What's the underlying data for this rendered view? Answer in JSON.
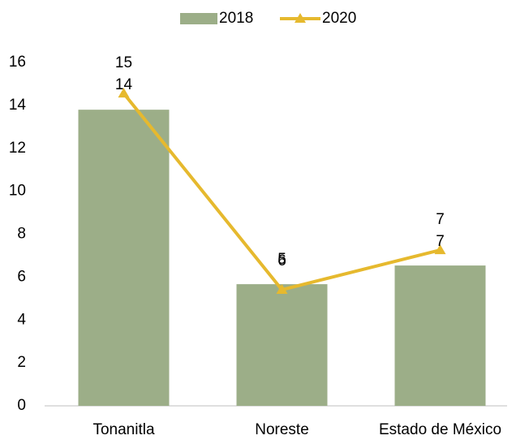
{
  "chart_data": {
    "type": "bar-line",
    "categories": [
      "Tonanitla",
      "Noreste",
      "Estado de México"
    ],
    "series": [
      {
        "name": "2018",
        "type": "bar",
        "color": "#9cae88",
        "values": [
          13.8,
          5.67,
          6.54
        ],
        "value_labels": [
          "14",
          "6",
          "7"
        ]
      },
      {
        "name": "2020",
        "type": "line",
        "color": "#e6b92e",
        "values": [
          14.56,
          5.41,
          7.26
        ],
        "value_labels": [
          "15",
          "5",
          "7"
        ]
      }
    ],
    "ylim": [
      0,
      16
    ],
    "yticks": [
      0,
      2,
      4,
      6,
      8,
      10,
      12,
      14,
      16
    ],
    "grid": false,
    "legend": "top"
  }
}
